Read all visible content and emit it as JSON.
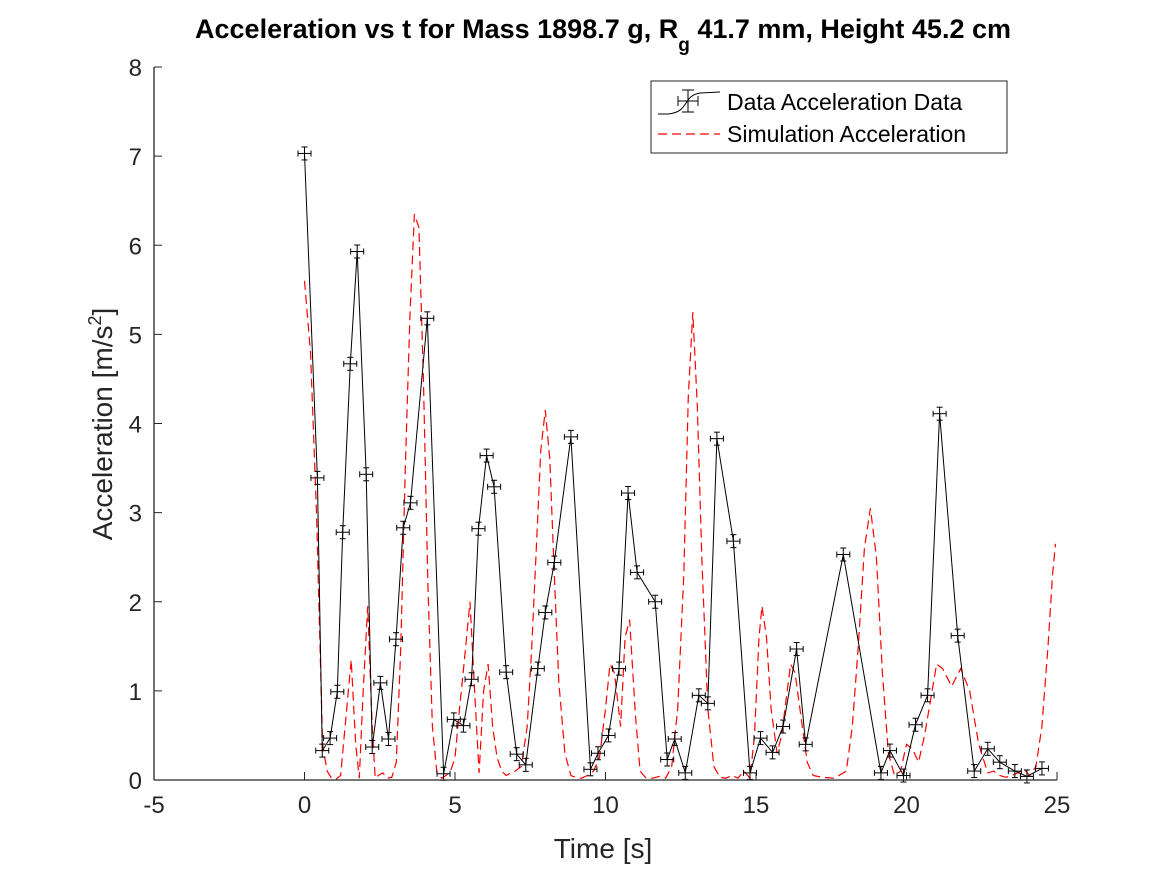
{
  "chart_data": {
    "type": "line",
    "title": {
      "main": "Acceleration vs t for Mass 1898.7 g, R",
      "subscript": "g",
      "rest": " 41.7 mm,  Height 45.2 cm"
    },
    "xlabel": "Time [s]",
    "ylabel": {
      "main": "Acceleration [m/s",
      "superscript": "2",
      "close": "]"
    },
    "xlim": [
      -5,
      25
    ],
    "ylim": [
      0,
      8
    ],
    "xticks": [
      -5,
      0,
      5,
      10,
      15,
      20,
      25
    ],
    "yticks": [
      0,
      1,
      2,
      3,
      4,
      5,
      6,
      7,
      8
    ],
    "grid": false,
    "legend_position": "top-right",
    "series": [
      {
        "name": "Data Acceleration Data",
        "style": "solid-with-errorbars",
        "color": "#000000",
        "x": [
          0.0,
          0.43,
          0.59,
          0.85,
          1.09,
          1.27,
          1.52,
          1.75,
          2.05,
          2.25,
          2.52,
          2.79,
          3.04,
          3.28,
          3.52,
          4.08,
          4.62,
          4.96,
          5.28,
          5.55,
          5.78,
          6.05,
          6.3,
          6.7,
          7.05,
          7.35,
          7.75,
          8.0,
          8.3,
          8.85,
          9.5,
          9.75,
          10.1,
          10.45,
          10.75,
          11.05,
          11.65,
          12.05,
          12.3,
          12.65,
          13.1,
          13.4,
          13.7,
          14.25,
          14.8,
          15.15,
          15.55,
          15.9,
          16.35,
          16.65,
          17.9,
          19.15,
          19.45,
          19.9,
          20.3,
          20.7,
          21.1,
          21.7,
          22.25,
          22.7,
          23.1,
          23.6,
          24.0,
          24.5
        ],
        "y": [
          7.03,
          3.39,
          0.33,
          0.47,
          0.99,
          2.78,
          4.67,
          5.93,
          3.43,
          0.37,
          1.09,
          0.46,
          1.58,
          2.83,
          3.11,
          5.18,
          0.07,
          0.68,
          0.61,
          1.13,
          2.82,
          3.64,
          3.29,
          1.21,
          0.29,
          0.17,
          1.25,
          1.88,
          2.44,
          3.85,
          0.12,
          0.3,
          0.5,
          1.25,
          3.22,
          2.33,
          2.0,
          0.23,
          0.46,
          0.08,
          0.95,
          0.86,
          3.83,
          2.68,
          0.08,
          0.47,
          0.31,
          0.6,
          1.47,
          0.4,
          2.53,
          0.08,
          0.33,
          0.05,
          0.62,
          0.95,
          4.11,
          1.62,
          0.1,
          0.35,
          0.2,
          0.1,
          0.04,
          0.13
        ]
      },
      {
        "name": "Simulation Acceleration",
        "style": "dashed",
        "color": "#ff0000",
        "x": [
          0.0,
          0.2,
          0.4,
          0.6,
          0.75,
          0.9,
          1.05,
          1.2,
          1.35,
          1.55,
          1.7,
          1.82,
          1.95,
          2.1,
          2.25,
          2.35,
          2.45,
          2.6,
          2.75,
          2.9,
          3.05,
          3.2,
          3.35,
          3.5,
          3.65,
          3.8,
          3.95,
          4.1,
          4.25,
          4.4,
          4.55,
          4.7,
          4.85,
          5.0,
          5.15,
          5.3,
          5.5,
          5.65,
          5.8,
          5.95,
          6.1,
          6.25,
          6.4,
          6.55,
          6.7,
          6.85,
          7.0,
          7.2,
          7.4,
          7.55,
          7.7,
          7.85,
          8.0,
          8.15,
          8.3,
          8.45,
          8.65,
          8.85,
          9.0,
          9.2,
          9.4,
          9.6,
          9.8,
          10.0,
          10.15,
          10.3,
          10.5,
          10.65,
          10.8,
          11.0,
          11.15,
          11.35,
          11.55,
          11.8,
          12.0,
          12.2,
          12.4,
          12.6,
          12.75,
          12.9,
          13.05,
          13.2,
          13.4,
          13.6,
          13.8,
          14.0,
          14.2,
          14.4,
          14.6,
          14.8,
          14.95,
          15.1,
          15.2,
          15.35,
          15.5,
          15.7,
          15.85,
          16.0,
          16.15,
          16.3,
          16.5,
          16.7,
          16.9,
          17.2,
          17.6,
          18.0,
          18.2,
          18.4,
          18.6,
          18.8,
          19.0,
          19.2,
          19.4,
          19.6,
          19.8,
          20.0,
          20.2,
          20.4,
          20.6,
          20.8,
          21.0,
          21.2,
          21.5,
          21.8,
          22.1,
          22.4,
          22.7,
          22.9,
          23.1,
          23.3,
          23.5,
          23.7,
          23.9,
          24.1,
          24.3,
          24.5,
          24.7,
          24.85,
          24.95
        ],
        "y": [
          5.6,
          4.8,
          3.0,
          0.4,
          0.1,
          0.02,
          0.01,
          0.05,
          0.6,
          1.35,
          0.4,
          0.02,
          1.0,
          1.95,
          0.6,
          0.02,
          0.05,
          0.08,
          0.02,
          0.03,
          0.2,
          1.5,
          3.5,
          5.2,
          6.35,
          6.2,
          4.5,
          2.2,
          0.6,
          0.08,
          0.02,
          0.05,
          0.1,
          0.25,
          0.8,
          1.3,
          2.0,
          1.0,
          0.08,
          1.0,
          1.3,
          0.6,
          0.25,
          0.1,
          0.05,
          0.08,
          0.1,
          0.15,
          0.6,
          1.5,
          2.6,
          3.7,
          4.15,
          3.6,
          2.3,
          1.1,
          0.3,
          0.05,
          0.03,
          0.02,
          0.05,
          0.1,
          0.25,
          0.8,
          1.3,
          1.2,
          0.6,
          1.6,
          1.8,
          0.7,
          0.1,
          0.02,
          0.02,
          0.04,
          0.02,
          0.15,
          0.8,
          2.3,
          4.3,
          5.25,
          4.2,
          2.5,
          0.8,
          0.15,
          0.03,
          0.02,
          0.05,
          0.02,
          0.1,
          0.02,
          0.5,
          1.6,
          1.95,
          1.6,
          0.8,
          0.3,
          0.5,
          0.9,
          1.3,
          1.2,
          0.7,
          0.2,
          0.05,
          0.03,
          0.02,
          0.1,
          0.6,
          1.5,
          2.6,
          3.05,
          2.5,
          1.2,
          0.3,
          0.05,
          0.1,
          0.4,
          0.35,
          0.2,
          0.5,
          0.9,
          1.3,
          1.25,
          1.05,
          1.25,
          1.0,
          0.4,
          0.08,
          0.1,
          0.05,
          0.03,
          0.05,
          0.08,
          0.12,
          0.05,
          0.15,
          0.6,
          1.5,
          2.3,
          2.65
        ]
      }
    ]
  }
}
